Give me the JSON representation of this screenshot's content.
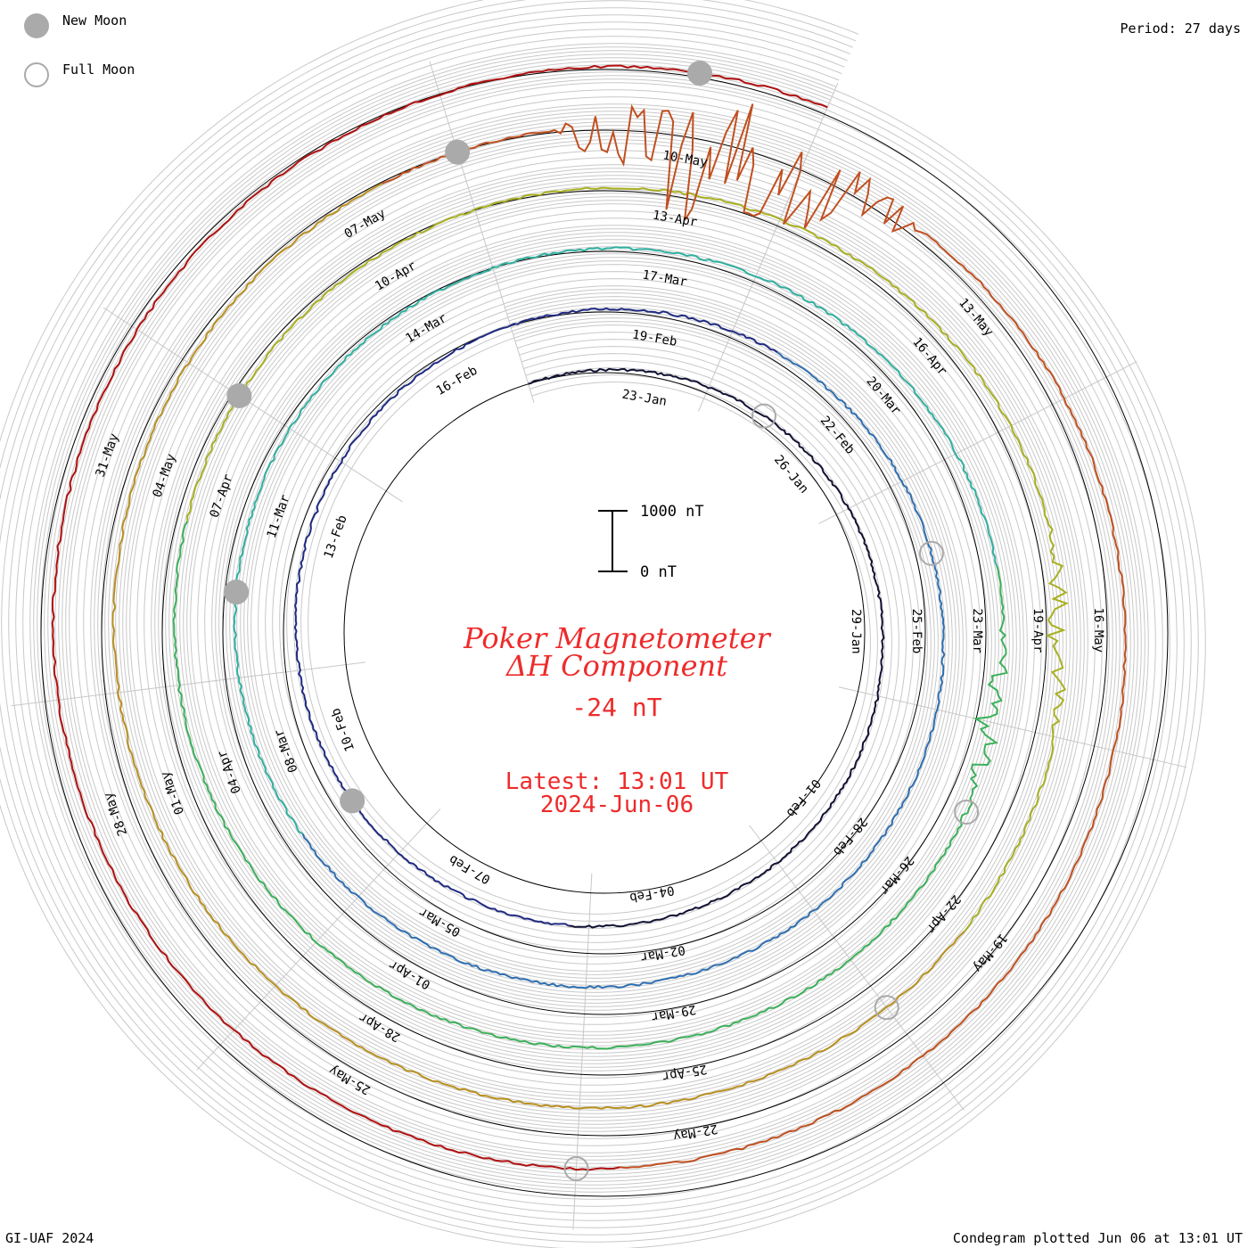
{
  "legend": {
    "new_moon_label": "New Moon",
    "full_moon_label": "Full Moon",
    "period_label": "Period: 27 days"
  },
  "title": {
    "line1": "Poker Magnetometer",
    "line2": "ΔH Component",
    "current_value": "-24 nT",
    "latest_line": "Latest: 13:01 UT",
    "latest_date": "2024-Jun-06"
  },
  "scale_bar": {
    "top_label": "1000 nT",
    "bottom_label": "0 nT"
  },
  "footer": {
    "left": "GI-UAF 2024",
    "right": "Condegram plotted Jun 06 at 13:01 UT"
  },
  "colors": {
    "title": "#ee2b2b",
    "moon_fill": "#aaaaaa",
    "grid": "#c8c8c8"
  },
  "chart_data": {
    "type": "line",
    "subtype": "condegram-spiral",
    "period_days": 27,
    "start_date": "2024-Jan-21",
    "end_date": "2024-Jun-06",
    "scale_nT": [
      0,
      1000
    ],
    "cycles": [
      {
        "color": "#1a1a33",
        "labels": [
          "23-Jan",
          "26-Jan",
          "29-Jan",
          "01-Feb",
          "04-Feb",
          "07-Feb",
          "10-Feb",
          "13-Feb",
          "16-Feb"
        ]
      },
      {
        "color": "#1f2a80",
        "labels": [
          "19-Feb",
          "22-Feb",
          "25-Feb",
          "28-Feb",
          "02-Mar",
          "05-Mar",
          "08-Mar",
          "11-Mar",
          "14-Mar"
        ]
      },
      {
        "color": "#2f8fb0",
        "labels": [
          "17-Mar",
          "20-Mar",
          "23-Mar",
          "26-Mar",
          "29-Mar",
          "01-Apr",
          "04-Apr",
          "07-Apr",
          "10-Apr"
        ]
      },
      {
        "color": "#3cb05a",
        "labels": [
          "13-Apr",
          "16-Apr",
          "19-Apr",
          "22-Apr",
          "25-Apr",
          "28-Apr",
          "01-May",
          "04-May",
          "07-May"
        ]
      },
      {
        "color": "#a8b020",
        "labels": [
          "10-May",
          "13-May",
          "16-May",
          "19-May",
          "22-May",
          "25-May",
          "28-May",
          "31-May"
        ]
      }
    ],
    "new_moons": [
      "2024-Feb-09",
      "2024-Mar-10",
      "2024-Apr-08",
      "2024-May-08",
      "2024-Jun-06"
    ],
    "full_moons": [
      "2024-Jan-25",
      "2024-Feb-24",
      "2024-Mar-25",
      "2024-Apr-23",
      "2024-May-23"
    ],
    "storm_events": [
      {
        "date": "2024-Mar-24",
        "approx_amplitude_nT": 500
      },
      {
        "date": "2024-Apr-19",
        "approx_amplitude_nT": 450
      },
      {
        "date": "2024-May-10",
        "approx_amplitude_nT": 2500
      },
      {
        "date": "2024-May-11",
        "approx_amplitude_nT": 2000
      }
    ]
  }
}
